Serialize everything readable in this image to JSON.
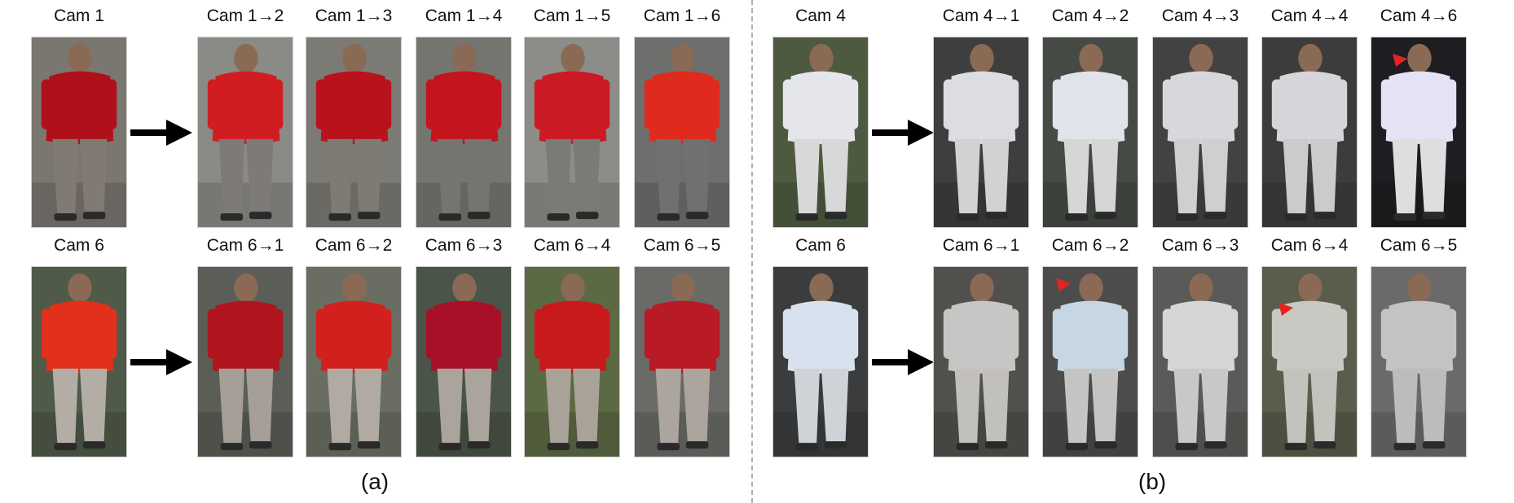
{
  "panel_a": {
    "caption": "(a)",
    "rows": [
      {
        "source": {
          "label": "Cam 1",
          "shirt": "#b0101a",
          "pants": "#807a72",
          "bg": "#7a7670"
        },
        "targets": [
          {
            "label": "Cam 1→2",
            "shirt": "#d01d22",
            "pants": "#7d7a78",
            "bg": "#8a8a86"
          },
          {
            "label": "Cam 1→3",
            "shirt": "#b8121c",
            "pants": "#7e7b74",
            "bg": "#7c7a74"
          },
          {
            "label": "Cam 1→4",
            "shirt": "#c4141d",
            "pants": "#76746e",
            "bg": "#757570"
          },
          {
            "label": "Cam 1→5",
            "shirt": "#cc1a24",
            "pants": "#7a7a76",
            "bg": "#8c8c88"
          },
          {
            "label": "Cam 1→6",
            "shirt": "#e02a1e",
            "pants": "#707070",
            "bg": "#6e6e6c"
          }
        ]
      },
      {
        "source": {
          "label": "Cam 6",
          "shirt": "#e2301a",
          "pants": "#b3ada5",
          "bg": "#505a48"
        },
        "targets": [
          {
            "label": "Cam 6→1",
            "shirt": "#b0151e",
            "pants": "#a59f97",
            "bg": "#5a5e56"
          },
          {
            "label": "Cam 6→2",
            "shirt": "#d2201e",
            "pants": "#b0aaa2",
            "bg": "#6a6e62"
          },
          {
            "label": "Cam 6→3",
            "shirt": "#a8102a",
            "pants": "#aaa49c",
            "bg": "#4a5448"
          },
          {
            "label": "Cam 6→4",
            "shirt": "#c81a1c",
            "pants": "#a8a298",
            "bg": "#5c6a44"
          },
          {
            "label": "Cam 6→5",
            "shirt": "#b81a26",
            "pants": "#aba59d",
            "bg": "#6a6a66"
          }
        ]
      }
    ]
  },
  "panel_b": {
    "caption": "(b)",
    "rows": [
      {
        "source": {
          "label": "Cam 4",
          "shirt": "#e4e6ec",
          "pants": "#d8d8d8",
          "bg": "#4e5a40"
        },
        "targets": [
          {
            "label": "Cam 4→1",
            "shirt": "#dcdde2",
            "pants": "#d2d2d2",
            "bg": "#3e3e3e"
          },
          {
            "label": "Cam 4→2",
            "shirt": "#e0e4ea",
            "pants": "#d6d6d6",
            "bg": "#464a44"
          },
          {
            "label": "Cam 4→3",
            "shirt": "#d8d8dc",
            "pants": "#cfcfcf",
            "bg": "#424242"
          },
          {
            "label": "Cam 4→4",
            "shirt": "#d6d6da",
            "pants": "#cbcbcb",
            "bg": "#3c3c3c"
          },
          {
            "label": "Cam 4→6",
            "shirt": "#e4e2f4",
            "pants": "#dedede",
            "bg": "#1e1e22"
          }
        ]
      },
      {
        "source": {
          "label": "Cam 6",
          "shirt": "#d8e2ee",
          "pants": "#cfd2d6",
          "bg": "#3a3c3e"
        },
        "targets": [
          {
            "label": "Cam 6→1",
            "shirt": "#c8c6c4",
            "pants": "#c2c0bc",
            "bg": "#52504c"
          },
          {
            "label": "Cam 6→2",
            "shirt": "#c6d6e2",
            "pants": "#c4c4c2",
            "bg": "#4c4c4c"
          },
          {
            "label": "Cam 6→3",
            "shirt": "#d4d6d8",
            "pants": "#c8c8c6",
            "bg": "#5a5a58"
          },
          {
            "label": "Cam 6→4",
            "shirt": "#cac8c2",
            "pants": "#c4c2bc",
            "bg": "#5a5c4c"
          },
          {
            "label": "Cam 6→5",
            "shirt": "#c4c2c4",
            "pants": "#bcbcbc",
            "bg": "#6a6a6a"
          }
        ]
      }
    ]
  },
  "markers": [
    {
      "panel": "b",
      "row": 0,
      "target": 4,
      "color": "#e8231f"
    },
    {
      "panel": "b",
      "row": 1,
      "target": 1,
      "color": "#e8231f"
    },
    {
      "panel": "b",
      "row": 1,
      "target": 3,
      "color": "#e8231f"
    }
  ]
}
